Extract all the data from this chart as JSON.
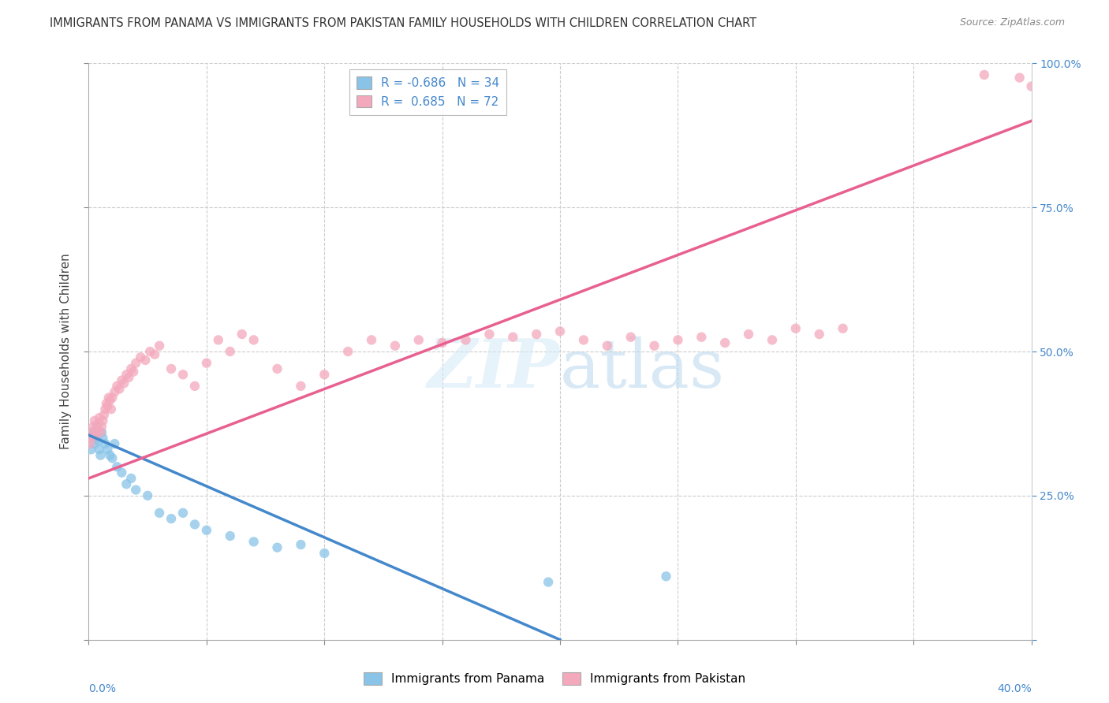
{
  "title": "IMMIGRANTS FROM PANAMA VS IMMIGRANTS FROM PAKISTAN FAMILY HOUSEHOLDS WITH CHILDREN CORRELATION CHART",
  "source": "Source: ZipAtlas.com",
  "xlim": [
    0.0,
    40.0
  ],
  "ylim": [
    0.0,
    100.0
  ],
  "ylabel": "Family Households with Children",
  "legend_panama": "Immigrants from Panama",
  "legend_pakistan": "Immigrants from Pakistan",
  "R_panama": -0.686,
  "N_panama": 34,
  "R_pakistan": 0.685,
  "N_pakistan": 72,
  "blue_dot_color": "#89c4e8",
  "pink_dot_color": "#f4a8bc",
  "blue_line_color": "#4488cc",
  "pink_line_color": "#e86090",
  "grid_color": "#cccccc",
  "panama_trend_x0": 0.0,
  "panama_trend_y0": 35.5,
  "panama_trend_x1": 20.0,
  "panama_trend_y1": 0.0,
  "pakistan_trend_x0": 0.0,
  "pakistan_trend_y0": 28.0,
  "pakistan_trend_x1": 40.0,
  "pakistan_trend_y1": 90.0,
  "panama_points_x": [
    0.1,
    0.15,
    0.2,
    0.25,
    0.3,
    0.35,
    0.4,
    0.45,
    0.5,
    0.55,
    0.6,
    0.7,
    0.8,
    0.9,
    1.0,
    1.1,
    1.2,
    1.4,
    1.6,
    1.8,
    2.0,
    2.5,
    3.0,
    3.5,
    4.0,
    4.5,
    5.0,
    6.0,
    7.0,
    8.0,
    9.0,
    10.0,
    19.5,
    24.5
  ],
  "panama_points_y": [
    33.0,
    35.0,
    36.0,
    34.0,
    35.5,
    37.0,
    34.5,
    33.0,
    32.0,
    36.0,
    35.0,
    34.0,
    33.0,
    32.0,
    31.5,
    34.0,
    30.0,
    29.0,
    27.0,
    28.0,
    26.0,
    25.0,
    22.0,
    21.0,
    22.0,
    20.0,
    19.0,
    18.0,
    17.0,
    16.0,
    16.5,
    15.0,
    10.0,
    11.0
  ],
  "pakistan_points_x": [
    0.05,
    0.1,
    0.15,
    0.2,
    0.25,
    0.3,
    0.35,
    0.4,
    0.45,
    0.5,
    0.55,
    0.6,
    0.65,
    0.7,
    0.75,
    0.8,
    0.85,
    0.9,
    0.95,
    1.0,
    1.1,
    1.2,
    1.3,
    1.4,
    1.5,
    1.6,
    1.7,
    1.8,
    1.9,
    2.0,
    2.2,
    2.4,
    2.6,
    2.8,
    3.0,
    3.5,
    4.0,
    4.5,
    5.0,
    5.5,
    6.0,
    6.5,
    7.0,
    8.0,
    9.0,
    10.0,
    11.0,
    12.0,
    13.0,
    14.0,
    15.0,
    16.0,
    17.0,
    18.0,
    19.0,
    20.0,
    21.0,
    22.0,
    23.0,
    24.0,
    25.0,
    26.0,
    27.0,
    28.0,
    29.0,
    30.0,
    31.0,
    32.0,
    38.0,
    39.5,
    40.0,
    40.5
  ],
  "pakistan_points_y": [
    34.0,
    35.0,
    36.0,
    37.0,
    38.0,
    35.5,
    36.5,
    37.5,
    38.5,
    36.0,
    37.0,
    38.0,
    39.0,
    40.0,
    41.0,
    40.5,
    42.0,
    41.5,
    40.0,
    42.0,
    43.0,
    44.0,
    43.5,
    45.0,
    44.5,
    46.0,
    45.5,
    47.0,
    46.5,
    48.0,
    49.0,
    48.5,
    50.0,
    49.5,
    51.0,
    47.0,
    46.0,
    44.0,
    48.0,
    52.0,
    50.0,
    53.0,
    52.0,
    47.0,
    44.0,
    46.0,
    50.0,
    52.0,
    51.0,
    52.0,
    51.5,
    52.0,
    53.0,
    52.5,
    53.0,
    53.5,
    52.0,
    51.0,
    52.5,
    51.0,
    52.0,
    52.5,
    51.5,
    53.0,
    52.0,
    54.0,
    53.0,
    54.0,
    98.0,
    97.5,
    96.0,
    95.0
  ]
}
